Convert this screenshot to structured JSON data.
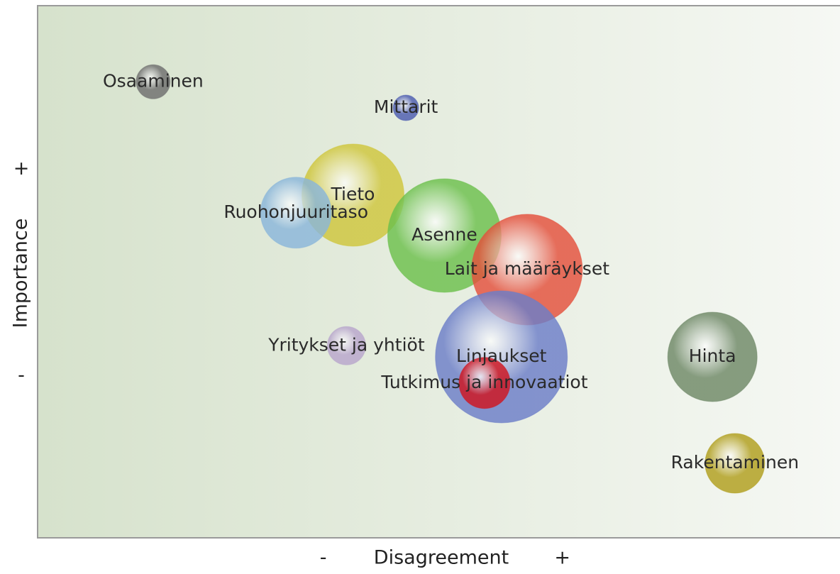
{
  "chart_data": {
    "type": "bubble",
    "xlabel": "Disagreement",
    "ylabel": "Importance",
    "xlim": [
      0,
      100
    ],
    "ylim": [
      0,
      100
    ],
    "xticks": [
      {
        "value": 35.6,
        "label": "-"
      },
      {
        "value": 65.4,
        "label": "+"
      }
    ],
    "yticks": [
      {
        "value": 30.4,
        "label": "-"
      },
      {
        "value": 69.3,
        "label": "+"
      }
    ],
    "points": [
      {
        "label": "Osaaminen",
        "x": 14.4,
        "y": 85.7,
        "size": 24,
        "color": "#6e6e6e"
      },
      {
        "label": "Mittarit",
        "x": 45.9,
        "y": 80.8,
        "size": 18,
        "color": "#4c5cb0"
      },
      {
        "label": "Tieto",
        "x": 39.3,
        "y": 64.4,
        "size": 72,
        "color": "#cfc63c"
      },
      {
        "label": "Ruohonjuuritaso",
        "x": 32.2,
        "y": 61.1,
        "size": 50,
        "color": "#8ab6da"
      },
      {
        "label": "Asenne",
        "x": 50.7,
        "y": 56.8,
        "size": 80,
        "color": "#6cc04c"
      },
      {
        "label": "Lait ja määräykset",
        "x": 61.0,
        "y": 50.4,
        "size": 78,
        "color": "#e4503c"
      },
      {
        "label": "Yritykset ja yhtiöt",
        "x": 38.5,
        "y": 36.1,
        "size": 27,
        "color": "#b8a6cc"
      },
      {
        "label": "Linjaukset",
        "x": 57.8,
        "y": 34.0,
        "size": 93,
        "color": "#6c7ec8"
      },
      {
        "label": "Tutkimus ja innovaatiot",
        "x": 55.7,
        "y": 29.1,
        "size": 36,
        "color": "#d0141e"
      },
      {
        "label": "Hinta",
        "x": 84.1,
        "y": 34.0,
        "size": 63,
        "color": "#6e8866"
      },
      {
        "label": "Rakentaminen",
        "x": 86.9,
        "y": 14.0,
        "size": 42,
        "color": "#b09e1c"
      }
    ]
  }
}
